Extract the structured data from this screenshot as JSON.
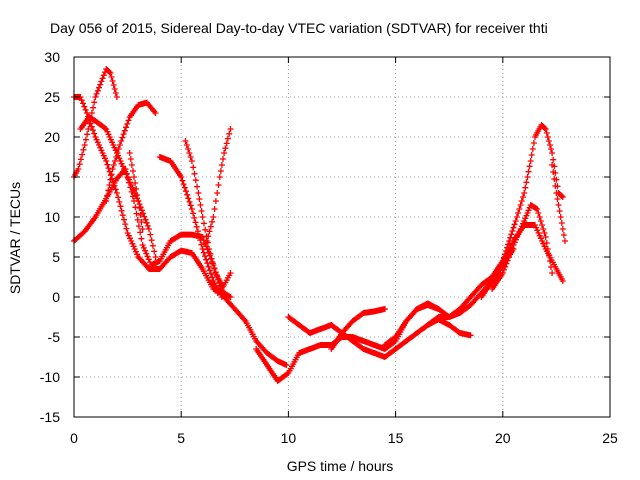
{
  "chart_data": {
    "type": "scatter",
    "title": "Day 056 of 2015, Sidereal Day-to-day VTEC variation (SDTVAR) for receiver thti",
    "xlabel": "GPS time / hours",
    "ylabel": "SDTVAR / TECUs",
    "xlim": [
      0,
      25
    ],
    "ylim": [
      -15,
      30
    ],
    "xticks": [
      0,
      5,
      10,
      15,
      20,
      25
    ],
    "yticks": [
      -15,
      -10,
      -5,
      0,
      5,
      10,
      15,
      20,
      25,
      30
    ],
    "grid": true,
    "marker": "plus",
    "color": "#ff0000",
    "series": [
      {
        "x": [
          0.0,
          0.5,
          1.0,
          1.5,
          2.0,
          2.4,
          2.8,
          3.2,
          3.6,
          4.0,
          4.5,
          5.0,
          5.5,
          6.0,
          6.5,
          7.0,
          7.5,
          8.0,
          8.5,
          9.0,
          9.5,
          9.9
        ],
        "y": [
          7.0,
          8.2,
          10.0,
          12.3,
          14.8,
          16.0,
          12.0,
          6.5,
          4.0,
          4.5,
          7.0,
          7.8,
          7.8,
          7.5,
          4.0,
          0.0,
          -1.5,
          -3.0,
          -5.5,
          -7.0,
          -8.0,
          -8.5
        ]
      },
      {
        "x": [
          0.0,
          0.3,
          0.6,
          1.0,
          1.5,
          2.0,
          2.5,
          3.0,
          3.5,
          4.0,
          4.5,
          5.0,
          5.5,
          6.0,
          6.5,
          7.0,
          7.3
        ],
        "y": [
          25.0,
          25.0,
          23.0,
          20.0,
          17.0,
          13.0,
          8.0,
          5.0,
          3.5,
          3.5,
          5.0,
          5.8,
          5.5,
          3.5,
          1.0,
          0.5,
          0.0
        ]
      },
      {
        "x": [
          0.0,
          0.2,
          0.5,
          1.0,
          1.5,
          1.7,
          2.0
        ],
        "y": [
          15.0,
          16.0,
          19.0,
          25.0,
          28.5,
          28.0,
          25.0
        ]
      },
      {
        "x": [
          0.3,
          0.7,
          1.0,
          1.5,
          2.0,
          2.5,
          3.0,
          3.5,
          3.8
        ],
        "y": [
          21.0,
          22.5,
          22.0,
          21.0,
          18.0,
          15.0,
          12.0,
          8.5,
          5.0
        ]
      },
      {
        "x": [
          1.5,
          1.8,
          2.2,
          2.6,
          3.0,
          3.4,
          3.8
        ],
        "y": [
          12.0,
          16.0,
          19.5,
          22.5,
          24.0,
          24.3,
          23.0
        ]
      },
      {
        "x": [
          2.6,
          2.8,
          3.0,
          3.2
        ],
        "y": [
          18.0,
          15.0,
          12.0,
          8.5
        ]
      },
      {
        "x": [
          4.0,
          4.5,
          5.0,
          5.5,
          6.0,
          6.5,
          6.9
        ],
        "y": [
          17.5,
          17.0,
          15.0,
          11.0,
          6.0,
          2.0,
          0.0
        ]
      },
      {
        "x": [
          5.2,
          5.5,
          5.8,
          6.0,
          6.3,
          6.6,
          6.9
        ],
        "y": [
          19.5,
          17.0,
          13.0,
          10.0,
          6.0,
          3.0,
          1.5
        ]
      },
      {
        "x": [
          6.2,
          6.5,
          6.8,
          7.0,
          7.3
        ],
        "y": [
          7.0,
          10.0,
          15.0,
          18.0,
          21.0
        ]
      },
      {
        "x": [
          6.7,
          7.0,
          7.3
        ],
        "y": [
          0.5,
          1.5,
          3.0
        ]
      },
      {
        "x": [
          8.5,
          9.0,
          9.5,
          10.0,
          10.5,
          11.0,
          11.5,
          12.0,
          12.5,
          13.0,
          13.5,
          14.0,
          14.5,
          15.0,
          15.5,
          16.0,
          16.5,
          17.0
        ],
        "y": [
          -6.5,
          -8.5,
          -10.5,
          -9.5,
          -7.0,
          -6.5,
          -6.0,
          -6.0,
          -5.0,
          -5.0,
          -5.5,
          -6.0,
          -6.5,
          -5.5,
          -3.0,
          -1.5,
          -0.8,
          -1.5
        ]
      },
      {
        "x": [
          10.0,
          10.5,
          11.0,
          11.5,
          12.0,
          12.5,
          13.0,
          13.5,
          14.0,
          14.5,
          15.0,
          15.5,
          16.0,
          16.5,
          17.0,
          17.5,
          18.0,
          18.5
        ],
        "y": [
          -2.5,
          -3.5,
          -4.5,
          -4.0,
          -3.5,
          -4.5,
          -5.5,
          -6.5,
          -7.0,
          -7.5,
          -6.5,
          -5.5,
          -4.5,
          -3.5,
          -2.8,
          -3.5,
          -4.5,
          -4.8
        ]
      },
      {
        "x": [
          12.0,
          12.5,
          13.0,
          13.5,
          14.0,
          14.5
        ],
        "y": [
          -6.5,
          -4.5,
          -3.0,
          -2.0,
          -1.8,
          -1.5
        ]
      },
      {
        "x": [
          14.5,
          15.0,
          15.5,
          16.0,
          16.5,
          17.0,
          17.5
        ],
        "y": [
          -6.0,
          -5.0,
          -3.0,
          -1.5,
          -1.0,
          -1.5,
          -2.5
        ]
      },
      {
        "x": [
          16.5,
          17.0,
          17.5,
          18.0,
          18.5,
          19.0,
          19.5,
          20.0,
          20.5
        ],
        "y": [
          -3.5,
          -2.5,
          -2.5,
          -2.0,
          -1.0,
          0.5,
          2.0,
          4.0,
          6.0
        ]
      },
      {
        "x": [
          17.5,
          18.0,
          18.5,
          19.0,
          19.5,
          20.0,
          20.5,
          21.0,
          21.5,
          22.0,
          22.5,
          22.8
        ],
        "y": [
          -2.5,
          -1.5,
          0.0,
          1.5,
          2.5,
          4.5,
          7.0,
          9.0,
          9.0,
          6.0,
          3.5,
          2.0
        ]
      },
      {
        "x": [
          19.0,
          19.5,
          20.0,
          20.3,
          20.6,
          21.0,
          21.3,
          21.5,
          21.8,
          22.0,
          22.3,
          22.6,
          22.8
        ],
        "y": [
          0.0,
          2.0,
          4.5,
          7.0,
          9.5,
          13.0,
          17.0,
          20.0,
          21.5,
          21.0,
          18.0,
          13.0,
          12.5
        ]
      },
      {
        "x": [
          19.5,
          20.0,
          20.5,
          21.0,
          21.3,
          21.6,
          22.0,
          22.3
        ],
        "y": [
          1.0,
          3.0,
          6.5,
          9.5,
          11.5,
          11.0,
          7.5,
          3.0
        ]
      },
      {
        "x": [
          22.3,
          22.5,
          22.7,
          22.9
        ],
        "y": [
          16.5,
          13.0,
          10.0,
          7.0
        ]
      }
    ]
  }
}
